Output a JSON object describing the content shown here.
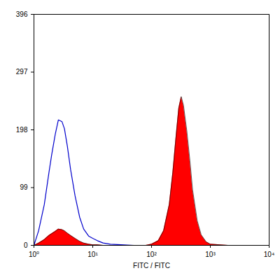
{
  "chart_data": {
    "type": "area",
    "x_label": "FITC / FITC",
    "log": "x",
    "xlim": [
      1,
      10000
    ],
    "xticks": [
      {
        "value": 1,
        "label": "10⁰"
      },
      {
        "value": 10,
        "label": "10¹"
      },
      {
        "value": 100,
        "label": "10²"
      },
      {
        "value": 1000,
        "label": "10³"
      },
      {
        "value": 10000,
        "label": "10⁴"
      }
    ],
    "ylim": [
      0,
      396
    ],
    "yticks": [
      0,
      99,
      198,
      297,
      396
    ],
    "x": [
      1,
      1.2,
      1.5,
      1.8,
      2,
      2.3,
      2.6,
      3,
      3.3,
      3.7,
      4.2,
      5,
      6,
      7,
      8.5,
      10,
      12,
      15,
      20,
      30,
      50,
      80,
      100,
      130,
      160,
      200,
      230,
      260,
      290,
      320,
      350,
      400,
      450,
      500,
      600,
      700,
      850,
      1000,
      2000,
      10000
    ],
    "series": [
      {
        "type": "line",
        "color": "#0000cc",
        "values": [
          0,
          25,
          70,
          125,
          155,
          190,
          215,
          212,
          200,
          170,
          130,
          85,
          48,
          28,
          16,
          12,
          8,
          4,
          2,
          1,
          0,
          0,
          0,
          0,
          0,
          0,
          0,
          0,
          0,
          0,
          0,
          0,
          0,
          0,
          0,
          0,
          0,
          0,
          0,
          0
        ]
      },
      {
        "type": "area",
        "color": "#ff0000",
        "values": [
          0,
          4,
          10,
          17,
          20,
          24,
          28,
          27,
          25,
          21,
          17,
          12,
          7,
          4,
          2,
          1,
          1,
          0,
          0,
          0,
          0,
          0,
          2,
          8,
          25,
          70,
          125,
          185,
          235,
          255,
          240,
          195,
          145,
          95,
          42,
          18,
          6,
          2,
          0,
          0
        ]
      }
    ]
  }
}
